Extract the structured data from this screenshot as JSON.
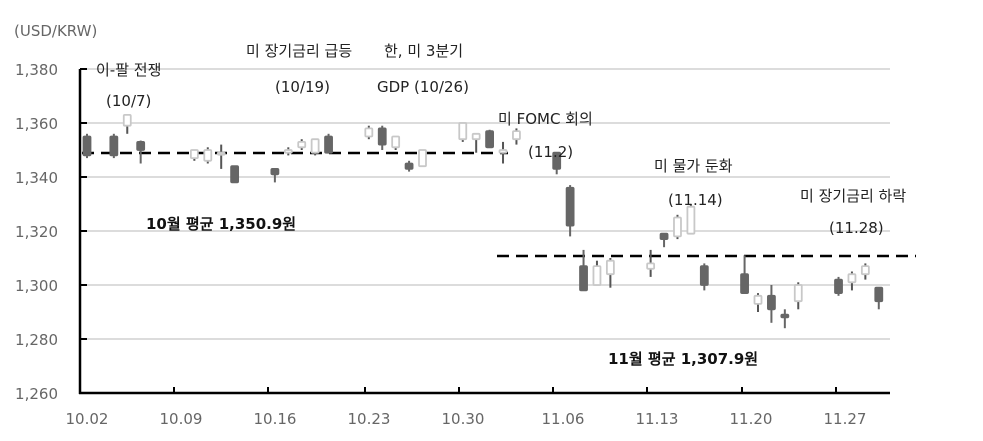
{
  "chart_data": {
    "type": "candlestick",
    "title": "",
    "unit_label": "(USD/KRW)",
    "xlabel": "",
    "ylabel": "USD/KRW",
    "ylim": [
      1260,
      1380
    ],
    "yticks": [
      1260,
      1280,
      1300,
      1320,
      1340,
      1360,
      1380
    ],
    "ytick_labels": [
      "1,260",
      "1,280",
      "1,300",
      "1,320",
      "1,340",
      "1,360",
      "1,380"
    ],
    "xtick_labels": [
      "10.02",
      "10.09",
      "10.16",
      "10.23",
      "10.30",
      "11.06",
      "11.13",
      "11.20",
      "11.27"
    ],
    "grid": true,
    "colors": {
      "up_fill": "#ffffff",
      "up_stroke": "#c8c8c8",
      "down_fill": "#666666",
      "down_stroke": "#666666",
      "grid": "#d9d9d9",
      "axis": "#000000",
      "avg_line": "#000000"
    },
    "series": [
      {
        "date": "10.02",
        "open": 1355,
        "high": 1356,
        "low": 1347,
        "close": 1348
      },
      {
        "date": "10.04",
        "open": 1355,
        "high": 1356,
        "low": 1347,
        "close": 1348
      },
      {
        "date": "10.05",
        "open": 1359,
        "high": 1363,
        "low": 1356,
        "close": 1363
      },
      {
        "date": "10.06",
        "open": 1353,
        "high": 1353.5,
        "low": 1345,
        "close": 1350
      },
      {
        "date": "10.10",
        "open": 1347,
        "high": 1350,
        "low": 1346,
        "close": 1350
      },
      {
        "date": "10.11",
        "open": 1346,
        "high": 1351,
        "low": 1345,
        "close": 1350
      },
      {
        "date": "10.12",
        "open": 1349,
        "high": 1352,
        "low": 1343,
        "close": 1349
      },
      {
        "date": "10.13",
        "open": 1344,
        "high": 1344,
        "low": 1338,
        "close": 1338
      },
      {
        "date": "10.16",
        "open": 1343,
        "high": 1343,
        "low": 1338,
        "close": 1341
      },
      {
        "date": "10.17",
        "open": 1349,
        "high": 1351,
        "low": 1348,
        "close": 1350
      },
      {
        "date": "10.18",
        "open": 1351,
        "high": 1354,
        "low": 1350,
        "close": 1353
      },
      {
        "date": "10.19",
        "open": 1349,
        "high": 1354,
        "low": 1348,
        "close": 1354
      },
      {
        "date": "10.20",
        "open": 1355,
        "high": 1356,
        "low": 1349,
        "close": 1349
      },
      {
        "date": "10.23",
        "open": 1355,
        "high": 1359,
        "low": 1354,
        "close": 1358
      },
      {
        "date": "10.24",
        "open": 1358,
        "high": 1359,
        "low": 1350,
        "close": 1352
      },
      {
        "date": "10.25",
        "open": 1351,
        "high": 1355,
        "low": 1350,
        "close": 1355
      },
      {
        "date": "10.26",
        "open": 1345,
        "high": 1346,
        "low": 1342,
        "close": 1343
      },
      {
        "date": "10.27",
        "open": 1344,
        "high": 1350,
        "low": 1344,
        "close": 1350
      },
      {
        "date": "10.30",
        "open": 1354,
        "high": 1360,
        "low": 1353,
        "close": 1360
      },
      {
        "date": "10.31",
        "open": 1354,
        "high": 1356,
        "low": 1349,
        "close": 1356
      },
      {
        "date": "11.01",
        "open": 1357,
        "high": 1357.5,
        "low": 1351,
        "close": 1351
      },
      {
        "date": "11.02",
        "open": 1349,
        "high": 1353,
        "low": 1345,
        "close": 1350
      },
      {
        "date": "11.03",
        "open": 1354,
        "high": 1358,
        "low": 1352,
        "close": 1357
      },
      {
        "date": "11.06",
        "open": 1349,
        "high": 1349,
        "low": 1341,
        "close": 1343
      },
      {
        "date": "11.07",
        "open": 1336,
        "high": 1337,
        "low": 1318,
        "close": 1322
      },
      {
        "date": "11.08",
        "open": 1307,
        "high": 1313,
        "low": 1298,
        "close": 1298
      },
      {
        "date": "11.09",
        "open": 1300,
        "high": 1309,
        "low": 1300,
        "close": 1307
      },
      {
        "date": "11.10",
        "open": 1304,
        "high": 1310,
        "low": 1299,
        "close": 1309
      },
      {
        "date": "11.13",
        "open": 1306,
        "high": 1313,
        "low": 1303,
        "close": 1308
      },
      {
        "date": "11.14",
        "open": 1319,
        "high": 1319,
        "low": 1314,
        "close": 1317
      },
      {
        "date": "11.15",
        "open": 1318,
        "high": 1326,
        "low": 1317,
        "close": 1325
      },
      {
        "date": "11.16",
        "open": 1319,
        "high": 1330,
        "low": 1319,
        "close": 1329
      },
      {
        "date": "11.17",
        "open": 1307,
        "high": 1308,
        "low": 1298,
        "close": 1300
      },
      {
        "date": "11.20",
        "open": 1304,
        "high": 1311,
        "low": 1297,
        "close": 1297
      },
      {
        "date": "11.21",
        "open": 1293,
        "high": 1297,
        "low": 1290,
        "close": 1296
      },
      {
        "date": "11.22",
        "open": 1296,
        "high": 1300,
        "low": 1286,
        "close": 1291
      },
      {
        "date": "11.23",
        "open": 1289,
        "high": 1291,
        "low": 1284,
        "close": 1288
      },
      {
        "date": "11.24",
        "open": 1294,
        "high": 1301,
        "low": 1291,
        "close": 1300
      },
      {
        "date": "11.27",
        "open": 1302,
        "high": 1303,
        "low": 1296,
        "close": 1297
      },
      {
        "date": "11.28",
        "open": 1301,
        "high": 1305,
        "low": 1298,
        "close": 1304
      },
      {
        "date": "11.29",
        "open": 1304,
        "high": 1308,
        "low": 1302,
        "close": 1307
      },
      {
        "date": "11.30",
        "open": 1299,
        "high": 1299,
        "low": 1291,
        "close": 1294
      }
    ],
    "averages": [
      {
        "label": "10월 평균 1,350.9원",
        "value": 1350.9,
        "from": "10.02",
        "to": "11.03"
      },
      {
        "label": "11월 평균 1,307.9원",
        "value": 1307.9,
        "from": "11.01",
        "to": "11.30"
      }
    ],
    "annotations": [
      {
        "line1": "이-팔 전쟁",
        "line2": "(10/7)"
      },
      {
        "line1": "미 장기금리 급등",
        "line2": "(10/19)"
      },
      {
        "line1": "한, 미 3분기",
        "line2": "GDP (10/26)"
      },
      {
        "line1": "미 FOMC 회의",
        "line2": "(11.2)"
      },
      {
        "line1": "미 물가 둔화",
        "line2": "(11.14)"
      },
      {
        "line1": "미 장기금리 하락",
        "line2": "(11.28)"
      }
    ]
  }
}
